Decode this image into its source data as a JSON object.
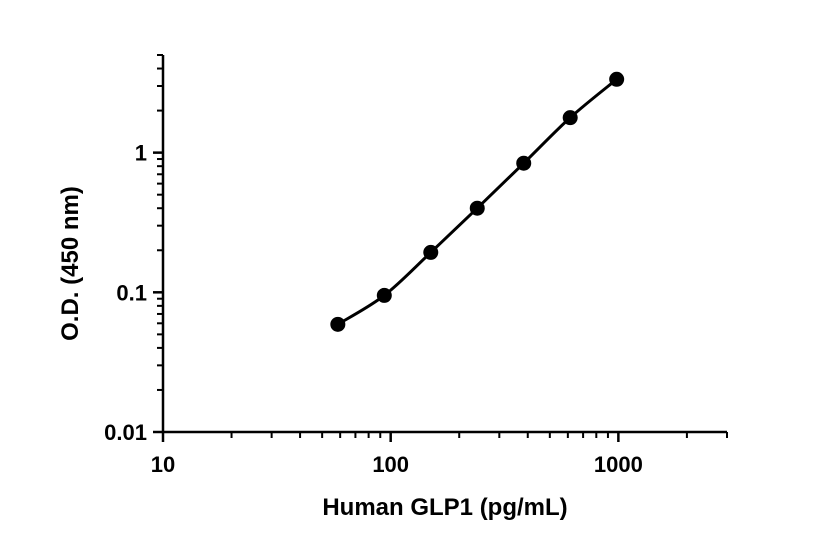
{
  "chart_data": {
    "type": "scatter",
    "title": "",
    "xlabel": "Human GLP1 (pg/mL)",
    "ylabel": "O.D. (450 nm)",
    "x_scale": "log",
    "y_scale": "log",
    "xlim": [
      10,
      3000
    ],
    "ylim": [
      0.01,
      5
    ],
    "x_ticks": [
      {
        "value": 10,
        "label": "10"
      },
      {
        "value": 100,
        "label": "100"
      },
      {
        "value": 1000,
        "label": "1000"
      }
    ],
    "y_ticks": [
      {
        "value": 0.01,
        "label": "0.01"
      },
      {
        "value": 0.1,
        "label": "0.1"
      },
      {
        "value": 1,
        "label": "1"
      }
    ],
    "grid": false,
    "legend": "none",
    "fitted_curve": true,
    "series": [
      {
        "x": [
          58.6,
          93.75,
          150,
          240,
          384,
          614.4,
          983
        ],
        "y": [
          0.059,
          0.095,
          0.193,
          0.4,
          0.84,
          1.78,
          3.35
        ],
        "color": "#000000"
      }
    ]
  }
}
